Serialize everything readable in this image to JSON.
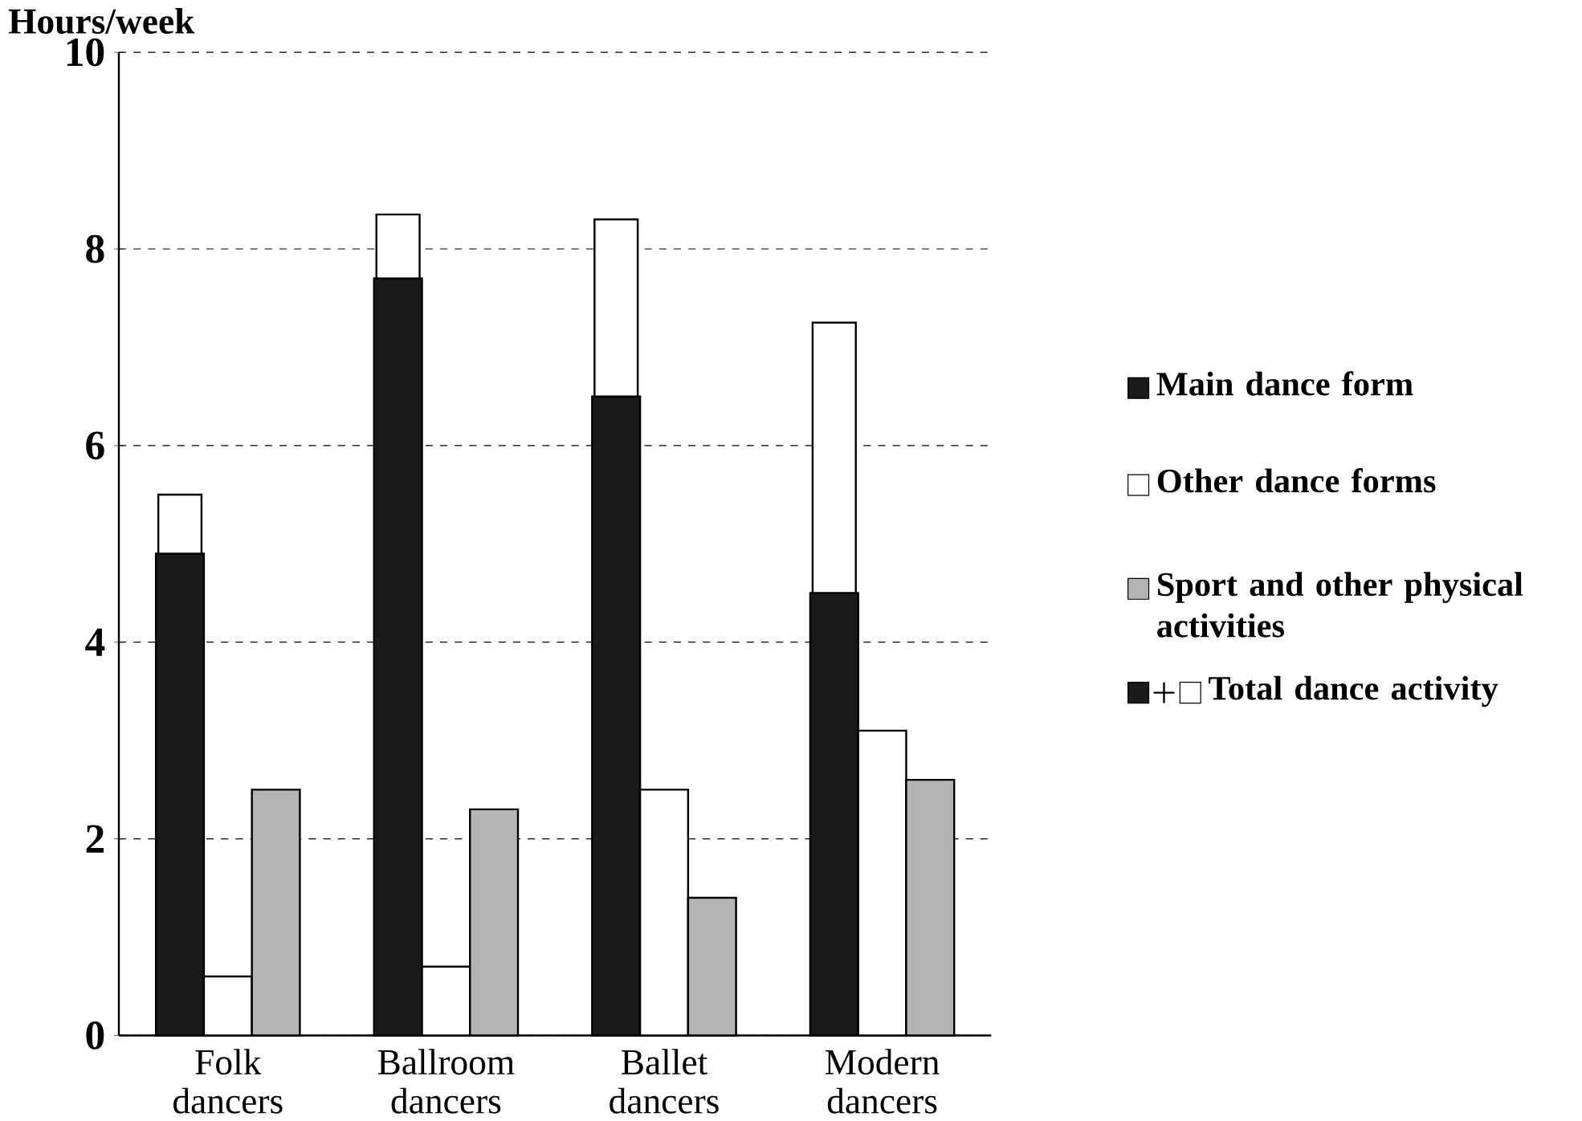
{
  "chart_data": {
    "type": "bar",
    "ylabel": "Hours/week",
    "categories": [
      "Folk dancers",
      "Ballroom dancers",
      "Ballet dancers",
      "Modern dancers"
    ],
    "series": [
      {
        "name": "Main dance form",
        "color": "#1a1a1a",
        "values": [
          4.9,
          7.7,
          6.5,
          4.5
        ]
      },
      {
        "name": "Total dance activity",
        "color": "#ffffff",
        "values": [
          0.6,
          0.65,
          1.8,
          2.75
        ],
        "base": [
          4.9,
          7.7,
          6.5,
          4.5
        ]
      },
      {
        "name": "Other dance forms",
        "color": "#ffffff",
        "values": [
          0.6,
          0.7,
          2.5,
          3.1
        ]
      },
      {
        "name": "Sport and other physical activities",
        "color": "#b4b4b4",
        "values": [
          2.5,
          2.3,
          1.4,
          2.6
        ]
      }
    ],
    "ylim": [
      0,
      10
    ],
    "yticks": [
      0,
      2,
      4,
      6,
      8,
      10
    ],
    "grid": "y",
    "legend": "right"
  }
}
